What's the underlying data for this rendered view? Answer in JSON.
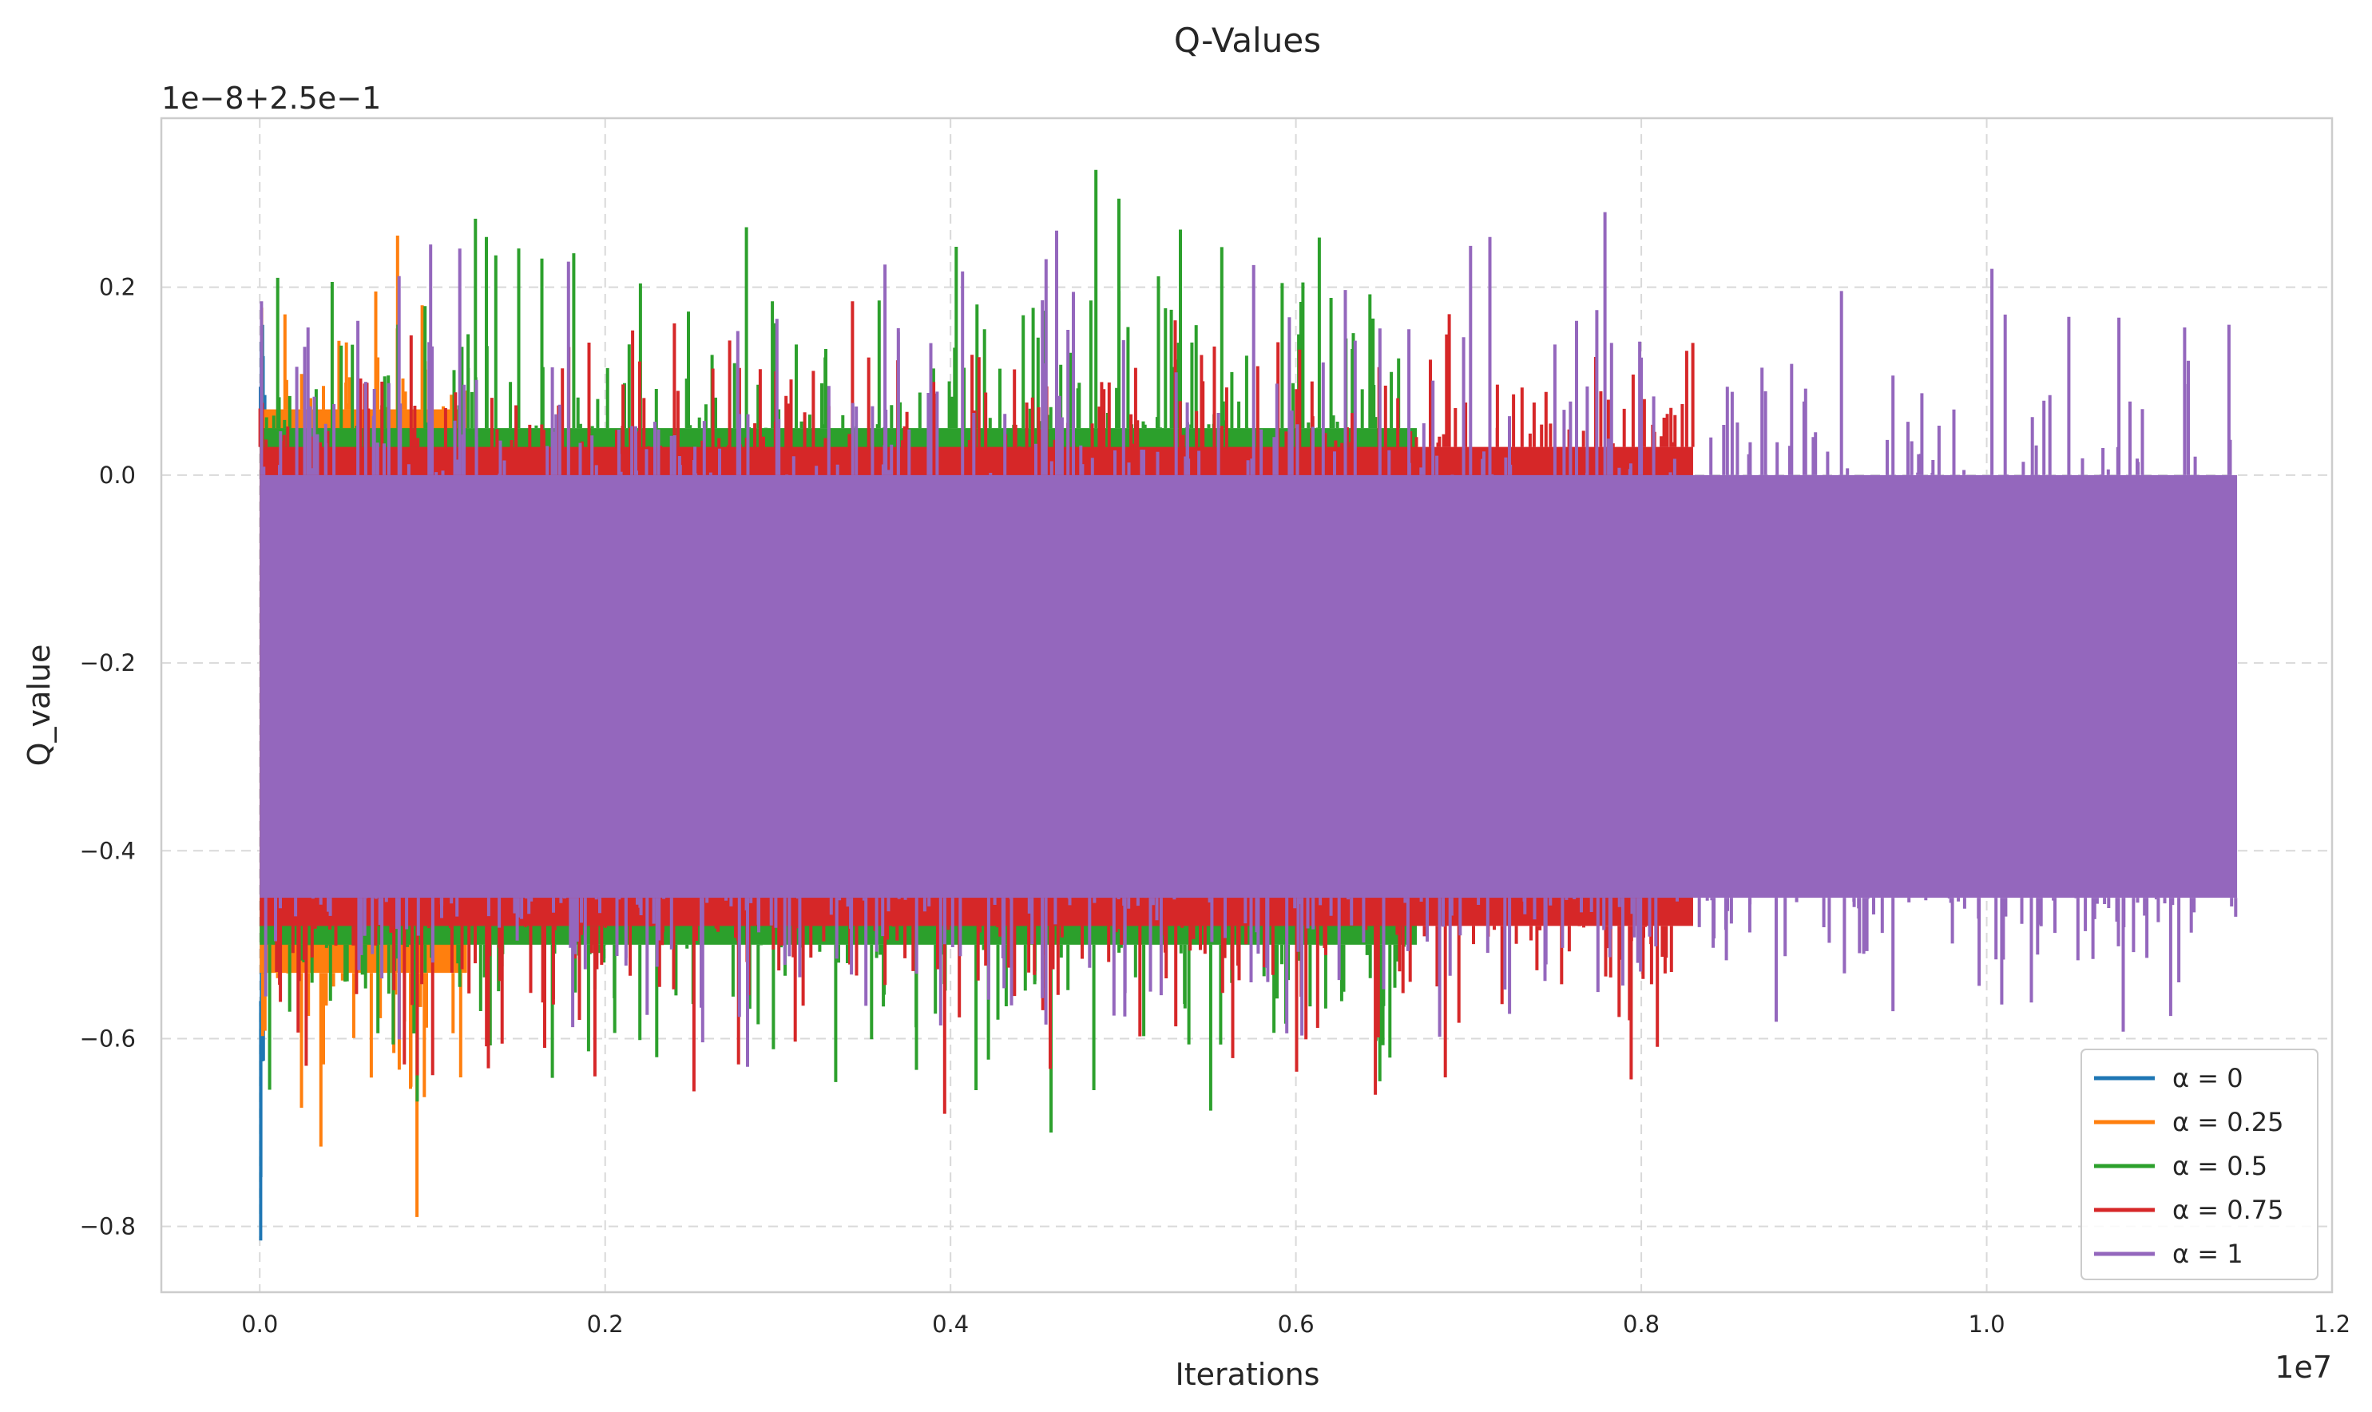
{
  "chart_data": {
    "type": "line",
    "title": "Q-Values",
    "xlabel": "Iterations",
    "ylabel": "Q_value",
    "x_offset_label": "1e7",
    "y_offset_label": "1e−8+2.5e−1",
    "xlim": [
      -0.057,
      1.2
    ],
    "ylim": [
      -0.87,
      0.38
    ],
    "x_ticks": [
      0.0,
      0.2,
      0.4,
      0.6,
      0.8,
      1.0,
      1.2
    ],
    "x_tick_labels": [
      "0.0",
      "0.2",
      "0.4",
      "0.6",
      "0.8",
      "1.0",
      "1.2"
    ],
    "y_ticks": [
      -0.8,
      -0.6,
      -0.4,
      -0.2,
      0.0,
      0.2
    ],
    "y_tick_labels": [
      "−0.8",
      "−0.6",
      "−0.4",
      "−0.2",
      "0.0",
      "0.2"
    ],
    "grid": true,
    "legend_position": "lower-right",
    "series": [
      {
        "name": "α = 0",
        "color": "#1f77b4",
        "x_end": 0.03,
        "band": [
          -0.56,
          0.07
        ],
        "min": -0.815,
        "max": 0.16
      },
      {
        "name": "α = 0.25",
        "color": "#ff7f0e",
        "x_end": 1.2,
        "band": [
          -0.53,
          0.07
        ],
        "min": -0.79,
        "max": 0.255
      },
      {
        "name": "α = 0.5",
        "color": "#2ca02c",
        "x_end": 6.7,
        "band": [
          -0.5,
          0.05
        ],
        "min": -0.7,
        "max": 0.325
      },
      {
        "name": "α = 0.75",
        "color": "#d62728",
        "x_end": 8.3,
        "band": [
          -0.48,
          0.03
        ],
        "min": -0.68,
        "max": 0.185
      },
      {
        "name": "α = 1",
        "color": "#9467bd",
        "x_end": 11.45,
        "band": [
          -0.45,
          0.0
        ],
        "min": -0.63,
        "max": 0.28
      }
    ]
  }
}
